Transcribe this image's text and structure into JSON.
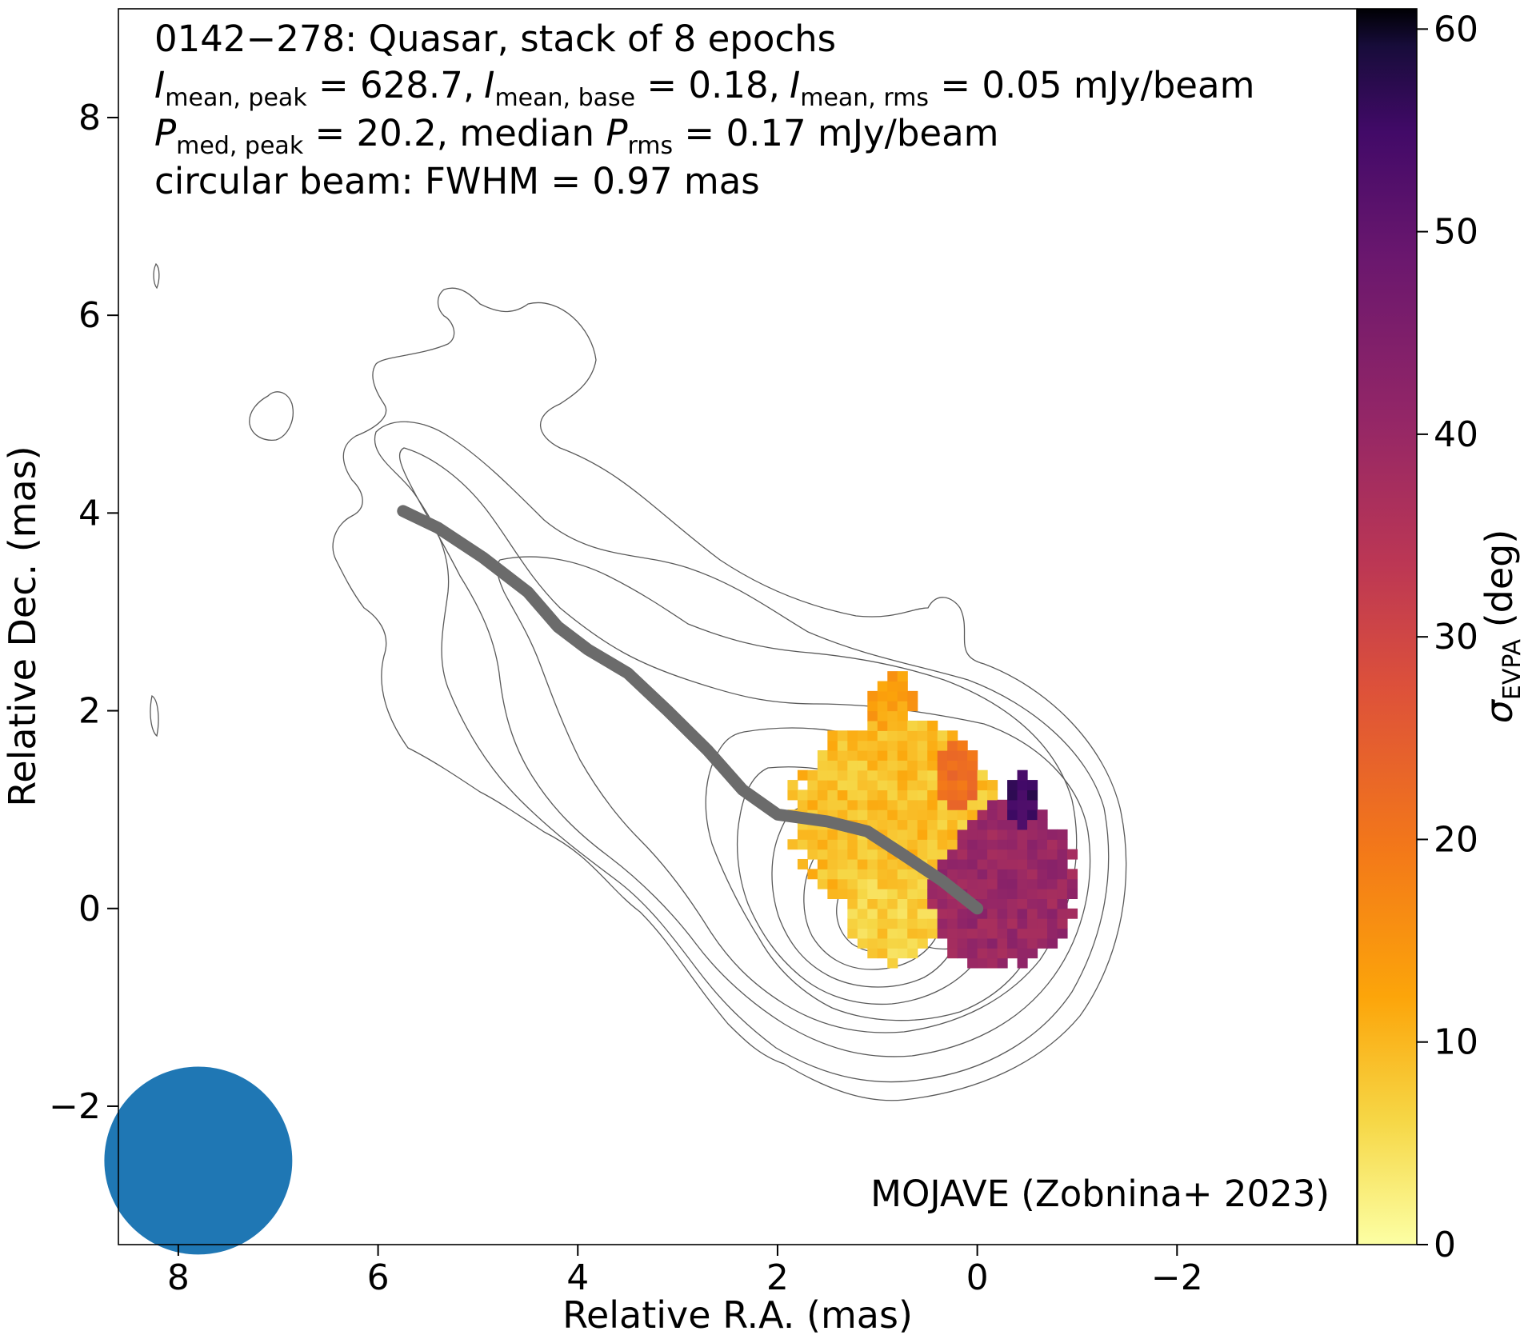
{
  "chart_data": {
    "type": "heatmap",
    "title_lines": {
      "line1": "0142−278: Quasar, stack of 8 epochs",
      "line2": {
        "i_mean_peak_label": "I",
        "i_mean_peak_sub": "mean, peak",
        "i_mean_peak_value": " = 628.7,",
        "i_mean_base_label": "I",
        "i_mean_base_sub": "mean, base",
        "i_mean_base_value": " = 0.18,",
        "i_mean_rms_label": "I",
        "i_mean_rms_sub": "mean, rms",
        "i_mean_rms_value": " = 0.05 mJy/beam"
      },
      "line3": {
        "p_med_peak_label": "P",
        "p_med_peak_sub": "med, peak",
        "p_med_peak_value": " = 20.2, median ",
        "p_rms_label": "P",
        "p_rms_sub": "rms",
        "p_rms_value": " = 0.17 mJy/beam"
      },
      "line4": "circular beam: FWHM = 0.97 mas"
    },
    "credit": "MOJAVE (Zobnina+ 2023)",
    "xlabel": "Relative R.A. (mas)",
    "ylabel": "Relative Dec. (mas)",
    "xlim": [
      8.6,
      -3.8
    ],
    "ylim": [
      -3.4,
      9.1
    ],
    "x_ticks": [
      8,
      6,
      4,
      2,
      0,
      -2
    ],
    "x_tick_labels": [
      "8",
      "6",
      "4",
      "2",
      "0",
      "−2"
    ],
    "y_ticks": [
      8,
      6,
      4,
      2,
      0,
      -2
    ],
    "y_tick_labels": [
      "8",
      "6",
      "4",
      "2",
      "0",
      "−2"
    ],
    "colorbar": {
      "label": "σ",
      "label_sub": "EVPA",
      "label_unit": " (deg)",
      "range": [
        0,
        61
      ],
      "ticks": [
        0,
        10,
        20,
        30,
        40,
        50,
        60
      ],
      "tick_labels": [
        "0",
        "10",
        "20",
        "30",
        "40",
        "50",
        "60"
      ],
      "colormap": "inferno_r"
    },
    "ridge_line": [
      [
        5.75,
        4.02
      ],
      [
        5.4,
        3.85
      ],
      [
        4.95,
        3.55
      ],
      [
        4.5,
        3.2
      ],
      [
        4.2,
        2.85
      ],
      [
        3.9,
        2.62
      ],
      [
        3.5,
        2.38
      ],
      [
        3.1,
        2.0
      ],
      [
        2.7,
        1.6
      ],
      [
        2.35,
        1.2
      ],
      [
        2.0,
        0.95
      ],
      [
        1.5,
        0.88
      ],
      [
        1.1,
        0.78
      ],
      [
        0.75,
        0.55
      ],
      [
        0.35,
        0.28
      ],
      [
        0.0,
        0.0
      ]
    ],
    "polarization_clusters": [
      {
        "center": [
          0.9,
          0.9
        ],
        "radius": [
          1.05,
          1.0
        ],
        "sigma_evpa_deg": 9
      },
      {
        "center": [
          0.9,
          -0.05
        ],
        "radius": [
          0.5,
          0.55
        ],
        "sigma_evpa_deg": 7
      },
      {
        "center": [
          0.9,
          2.0
        ],
        "radius": [
          0.22,
          0.35
        ],
        "sigma_evpa_deg": 13
      },
      {
        "center": [
          -0.15,
          0.2
        ],
        "radius": [
          0.85,
          0.9
        ],
        "sigma_evpa_deg": 40
      },
      {
        "center": [
          0.3,
          1.2
        ],
        "radius": [
          0.3,
          0.5
        ],
        "sigma_evpa_deg": 22
      },
      {
        "center": [
          -0.4,
          1.0
        ],
        "radius": [
          0.18,
          0.35
        ],
        "sigma_evpa_deg": 55
      }
    ],
    "beam": {
      "center": [
        7.8,
        -2.55
      ],
      "fwhm_mas": 0.97,
      "color": "#1f77b4"
    },
    "ridge_color": "#6b6b6b",
    "contour_color": "#5a5a5a"
  }
}
